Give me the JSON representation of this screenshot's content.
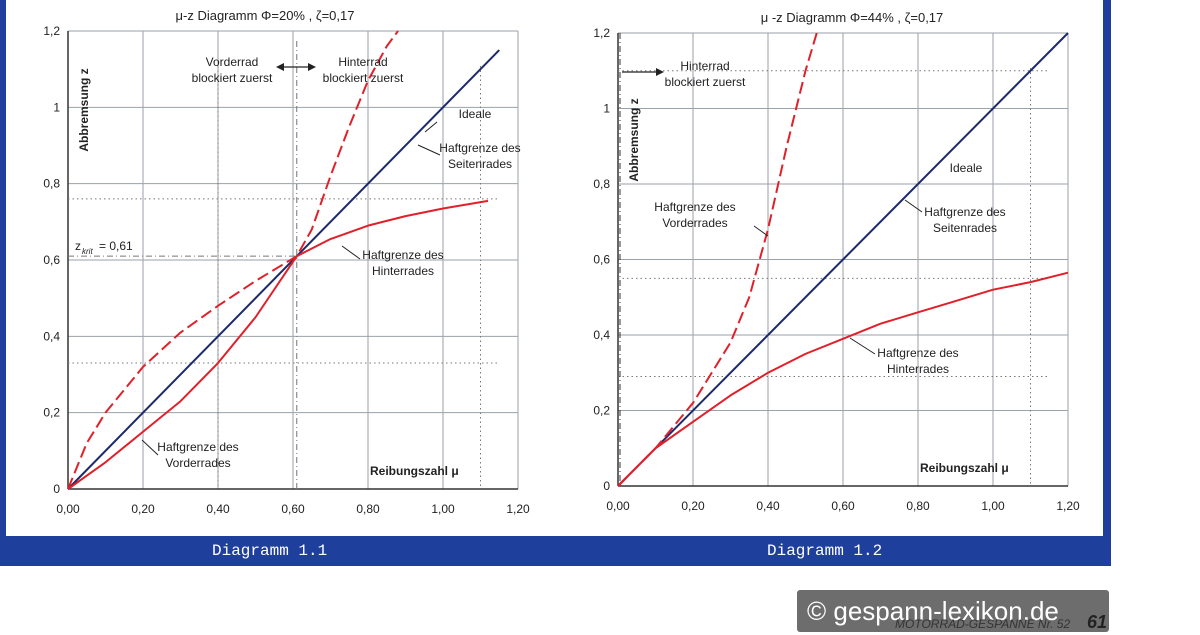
{
  "colors": {
    "frame_blue": "#1e3f9c",
    "ideal_line": "#1c2a6b",
    "red_curve": "#e0202a",
    "grid": "#9aa2aa"
  },
  "captions": [
    "Diagramm 1.1",
    "Diagramm 1.2"
  ],
  "watermark": "© gespann-lexikon.de",
  "magazine": "MOTORRAD-GESPANNE Nr. 52",
  "page_number": "61",
  "chart_data": [
    {
      "type": "line",
      "title": "μ-z Diagramm  Φ=20%  , ζ=0,17",
      "xlabel": "Reibungszahl μ",
      "ylabel": "Abbremsung z",
      "xlim": [
        0,
        1.2
      ],
      "ylim": [
        0,
        1.2
      ],
      "x_ticks": [
        "0,00",
        "0,20",
        "0,40",
        "0,60",
        "0,80",
        "1,00",
        "1,20"
      ],
      "y_ticks": [
        "0",
        "0,2",
        "0,4",
        "0,6",
        "0,8",
        "1",
        "1,2"
      ],
      "grid": true,
      "series": [
        {
          "style": "solid-blue",
          "x": [
            0,
            1.15
          ],
          "y": [
            0,
            1.15
          ]
        },
        {
          "style": "solid-red",
          "x": [
            0,
            0.1,
            0.2,
            0.3,
            0.4,
            0.5,
            0.61,
            0.7,
            0.8,
            0.9,
            1.0,
            1.12
          ],
          "y": [
            0,
            0.07,
            0.15,
            0.23,
            0.33,
            0.45,
            0.61,
            0.655,
            0.69,
            0.715,
            0.735,
            0.755
          ]
        },
        {
          "style": "dashed-red",
          "x": [
            0,
            0.05,
            0.1,
            0.2,
            0.3,
            0.4,
            0.5,
            0.61,
            0.65,
            0.7,
            0.75,
            0.8,
            0.85,
            0.88
          ],
          "y": [
            0,
            0.12,
            0.2,
            0.32,
            0.41,
            0.48,
            0.545,
            0.61,
            0.68,
            0.82,
            0.95,
            1.07,
            1.16,
            1.2
          ]
        }
      ],
      "annotations": {
        "zkrit_label": "z",
        "zkrit_sub": "krit",
        "zkrit_value": "= 0,61",
        "vorderrad_line1": "Vorderrad",
        "vorderrad_line2": "blockiert zuerst",
        "hinterrad_line1": "Hinterrad",
        "hinterrad_line2": "blockiert zuerst",
        "ideale": "Ideale",
        "seiten_line1": "Haftgrenze des",
        "seiten_line2": "Seitenrades",
        "hinter_line1": "Haftgrenze des",
        "hinter_line2": "Hinterrades",
        "vorder_line1": "Haftgrenze des",
        "vorder_line2": "Vorderrades"
      },
      "reference_lines": {
        "zkrit": 0.61,
        "mu_crit": 0.61,
        "y_dotted": [
          0.76,
          0.33
        ],
        "x_dotted": [
          0.4,
          1.1
        ]
      }
    },
    {
      "type": "line",
      "title": "μ -z Diagramm  Φ=44%  , ζ=0,17",
      "xlabel": "Reibungszahl μ",
      "ylabel": "Abbremsung z",
      "xlim": [
        0,
        1.2
      ],
      "ylim": [
        0,
        1.2
      ],
      "x_ticks": [
        "0,00",
        "0,20",
        "0,40",
        "0,60",
        "0,80",
        "1,00",
        "1,20"
      ],
      "y_ticks": [
        "0",
        "0,2",
        "0,4",
        "0,6",
        "0,8",
        "1",
        "1,2"
      ],
      "grid": true,
      "series": [
        {
          "style": "solid-blue",
          "x": [
            0,
            1.2
          ],
          "y": [
            0,
            1.2
          ]
        },
        {
          "style": "solid-red",
          "x": [
            0,
            0.1,
            0.2,
            0.3,
            0.4,
            0.5,
            0.6,
            0.7,
            0.8,
            0.9,
            1.0,
            1.1,
            1.2
          ],
          "y": [
            0,
            0.1,
            0.17,
            0.24,
            0.3,
            0.35,
            0.39,
            0.43,
            0.46,
            0.49,
            0.52,
            0.54,
            0.565
          ]
        },
        {
          "style": "dashed-red",
          "x": [
            0,
            0.05,
            0.1,
            0.2,
            0.3,
            0.35,
            0.4,
            0.45,
            0.5,
            0.53
          ],
          "y": [
            0,
            0.05,
            0.1,
            0.22,
            0.38,
            0.5,
            0.68,
            0.9,
            1.1,
            1.2
          ]
        }
      ],
      "annotations": {
        "hinterrad_line1": "Hinterrad",
        "hinterrad_line2": "blockiert zuerst",
        "ideale": "Ideale",
        "seiten_line1": "Haftgrenze des",
        "seiten_line2": "Seitenrades",
        "hinter_line1": "Haftgrenze des",
        "hinter_line2": "Hinterrades",
        "vorder_line1": "Haftgrenze des",
        "vorder_line2": "Vorderrades"
      },
      "reference_lines": {
        "y_dotted": [
          1.1,
          0.55,
          0.29
        ],
        "x_dotted": [
          1.1
        ]
      }
    }
  ]
}
